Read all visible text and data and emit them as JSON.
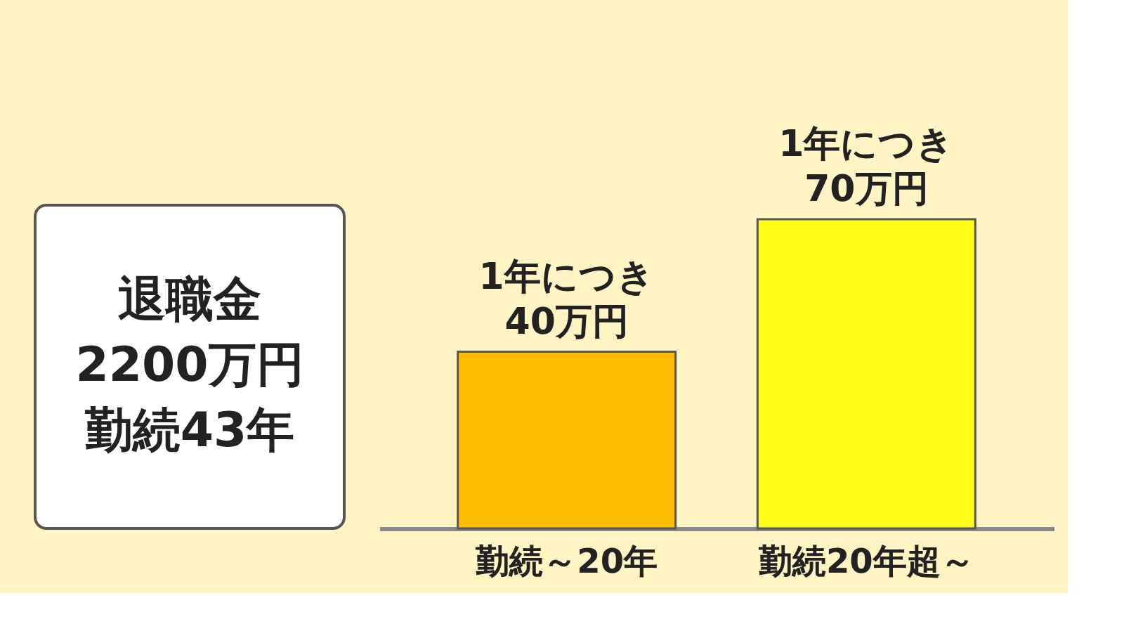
{
  "chart_data": {
    "type": "bar",
    "categories": [
      "勤続～20年",
      "勤続20年超～"
    ],
    "values": [
      40,
      70
    ],
    "colors": [
      "#ffbf00",
      "#ffff1a"
    ],
    "value_labels": [
      "1年につき\n40万円",
      "1年につき\n70万円"
    ],
    "annotations": [
      "退職金",
      "2200万円",
      "勤続43年"
    ],
    "grid": false
  }
}
